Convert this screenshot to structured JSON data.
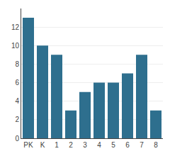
{
  "chart_data": {
    "type": "bar",
    "categories": [
      "PK",
      "K",
      "1",
      "2",
      "3",
      "4",
      "5",
      "6",
      "7",
      "8"
    ],
    "values": [
      13,
      10,
      9,
      3,
      5,
      6,
      6,
      7,
      9,
      3
    ],
    "color": "#2e6f8e",
    "ylim": [
      0,
      14
    ],
    "yticks": [
      0,
      2,
      4,
      6,
      8,
      10,
      12
    ],
    "grid": true
  }
}
